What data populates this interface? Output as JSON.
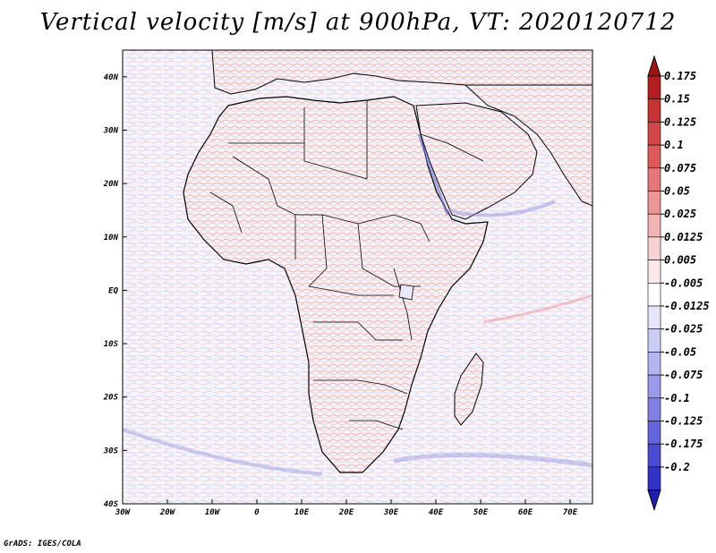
{
  "title": "Vertical velocity [m/s] at 900hPa, VT: 2020120712",
  "footer": "GrADS: IGES/COLA",
  "map": {
    "lon_range": [
      -30,
      75
    ],
    "lat_range": [
      -40,
      45
    ],
    "x_ticks": [
      {
        "value": -30,
        "label": "30W"
      },
      {
        "value": -20,
        "label": "20W"
      },
      {
        "value": -10,
        "label": "10W"
      },
      {
        "value": 0,
        "label": "0"
      },
      {
        "value": 10,
        "label": "10E"
      },
      {
        "value": 20,
        "label": "20E"
      },
      {
        "value": 30,
        "label": "30E"
      },
      {
        "value": 40,
        "label": "40E"
      },
      {
        "value": 50,
        "label": "50E"
      },
      {
        "value": 60,
        "label": "60E"
      },
      {
        "value": 70,
        "label": "70E"
      }
    ],
    "y_ticks": [
      {
        "value": 40,
        "label": "40N"
      },
      {
        "value": 30,
        "label": "30N"
      },
      {
        "value": 20,
        "label": "20N"
      },
      {
        "value": 10,
        "label": "10N"
      },
      {
        "value": 0,
        "label": "EQ"
      },
      {
        "value": -10,
        "label": "10S"
      },
      {
        "value": -20,
        "label": "20S"
      },
      {
        "value": -30,
        "label": "30S"
      },
      {
        "value": -40,
        "label": "40S"
      }
    ]
  },
  "colorbar": [
    {
      "label": "0.175",
      "color": "#b41e1e"
    },
    {
      "label": "0.15",
      "color": "#c83232"
    },
    {
      "label": "0.125",
      "color": "#d24646"
    },
    {
      "label": "0.1",
      "color": "#dc5a5a"
    },
    {
      "label": "0.075",
      "color": "#e47878"
    },
    {
      "label": "0.05",
      "color": "#ec9696"
    },
    {
      "label": "0.025",
      "color": "#f2b4b4"
    },
    {
      "label": "0.0125",
      "color": "#f8d2d2"
    },
    {
      "label": "0.005",
      "color": "#fce8e8"
    },
    {
      "label": "-0.005",
      "color": "#ffffff"
    },
    {
      "label": "-0.0125",
      "color": "#e6e6fa"
    },
    {
      "label": "-0.025",
      "color": "#cccdf5"
    },
    {
      "label": "-0.05",
      "color": "#b4b4f0"
    },
    {
      "label": "-0.075",
      "color": "#9a9aea"
    },
    {
      "label": "-0.1",
      "color": "#8080e4"
    },
    {
      "label": "-0.125",
      "color": "#6464dc"
    },
    {
      "label": "-0.175",
      "color": "#4a4ad2"
    },
    {
      "label": "-0.2",
      "color": "#3232c8"
    }
  ],
  "colorbar_top_color": "#a01414",
  "colorbar_bottom_color": "#1e1eb4"
}
